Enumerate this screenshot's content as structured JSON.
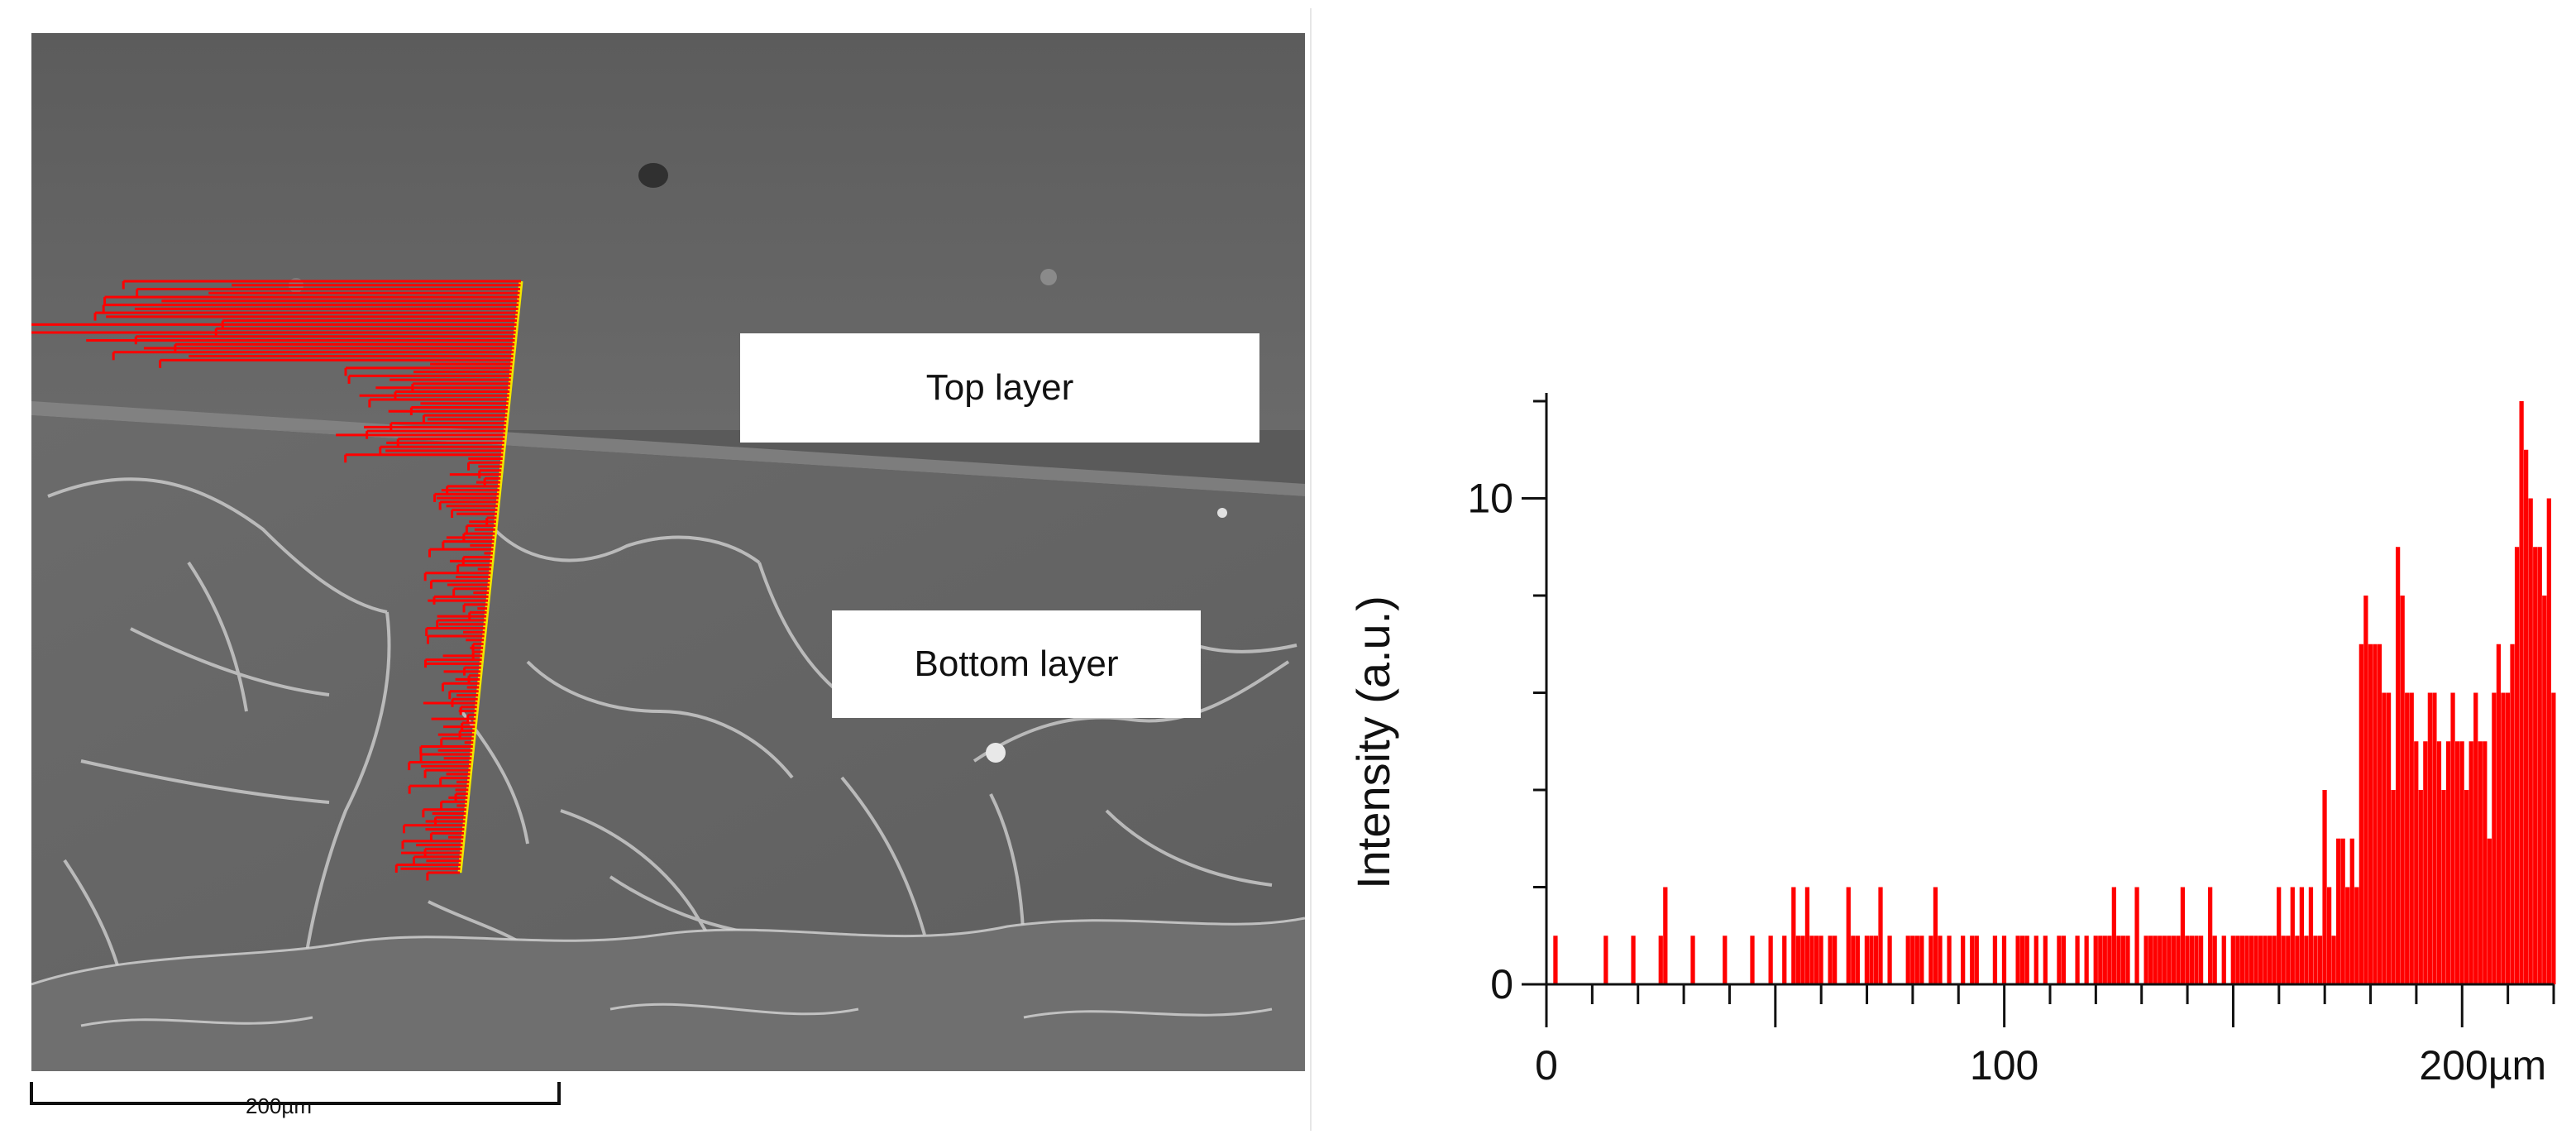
{
  "image_panel": {
    "labels": {
      "top": "Top layer",
      "bottom": "Bottom layer"
    },
    "scale_bar_label": "200µm",
    "colors": {
      "linescan": "#ff0000",
      "scan_line": "#f2e400"
    }
  },
  "chart_data": {
    "type": "bar",
    "title": "",
    "xlabel": "",
    "ylabel": "Intensity (a.u.)",
    "xlim": [
      0,
      220
    ],
    "ylim": [
      0,
      12
    ],
    "x_ticks": [
      "0",
      "100",
      "200µm"
    ],
    "x_tick_values": [
      0,
      100,
      200
    ],
    "y_ticks": [
      "0",
      "10"
    ],
    "y_tick_values": [
      0,
      10
    ],
    "grid": false,
    "bar_color": "#ff0000",
    "series": [
      {
        "x": [
          2,
          13,
          19,
          25,
          26,
          32,
          39,
          45,
          49,
          52,
          54,
          55,
          56,
          57,
          58,
          59,
          60,
          62,
          63,
          66,
          67,
          68,
          70,
          71,
          72,
          73,
          75,
          79,
          80,
          81,
          82,
          84,
          85,
          86,
          88,
          91,
          93,
          94,
          98,
          100,
          103,
          104,
          105,
          107,
          109,
          112,
          113,
          116,
          118,
          120,
          121,
          122,
          123,
          124,
          125,
          126,
          127,
          129,
          131,
          132,
          133,
          134,
          135,
          136,
          137,
          138,
          139,
          140,
          141,
          142,
          143,
          145,
          146,
          148,
          150,
          151,
          152,
          153,
          154,
          155,
          156,
          157,
          158,
          159,
          160,
          161,
          162,
          163,
          164,
          165,
          166,
          167,
          168,
          169,
          170,
          171,
          172,
          173,
          174,
          175,
          176,
          177,
          178,
          179,
          180,
          181,
          182,
          183,
          184,
          185,
          186,
          187,
          188,
          189,
          190,
          191,
          192,
          193,
          194,
          195,
          196,
          197,
          198,
          199,
          200,
          201,
          202,
          203,
          204,
          205,
          206,
          207,
          208,
          209,
          210,
          211,
          212,
          213,
          214,
          215,
          216,
          217,
          218,
          219,
          220
        ],
        "values": [
          1,
          1,
          1,
          1,
          2,
          1,
          1,
          1,
          1,
          1,
          2,
          1,
          1,
          2,
          1,
          1,
          1,
          1,
          1,
          2,
          1,
          1,
          1,
          1,
          1,
          2,
          1,
          1,
          1,
          1,
          1,
          1,
          2,
          1,
          1,
          1,
          1,
          1,
          1,
          1,
          1,
          1,
          1,
          1,
          1,
          1,
          1,
          1,
          1,
          1,
          1,
          1,
          1,
          2,
          1,
          1,
          1,
          2,
          1,
          1,
          1,
          1,
          1,
          1,
          1,
          1,
          2,
          1,
          1,
          1,
          1,
          2,
          1,
          1,
          1,
          1,
          1,
          1,
          1,
          1,
          1,
          1,
          1,
          1,
          2,
          1,
          1,
          2,
          1,
          2,
          1,
          2,
          1,
          1,
          4,
          2,
          1,
          3,
          3,
          2,
          3,
          2,
          7,
          8,
          7,
          7,
          7,
          6,
          6,
          4,
          9,
          8,
          6,
          6,
          5,
          4,
          5,
          6,
          6,
          5,
          4,
          5,
          6,
          5,
          5,
          4,
          5,
          6,
          5,
          5,
          3,
          6,
          7,
          6,
          6,
          7,
          9,
          12,
          11,
          10,
          9,
          9,
          8,
          10,
          6
        ]
      }
    ]
  }
}
